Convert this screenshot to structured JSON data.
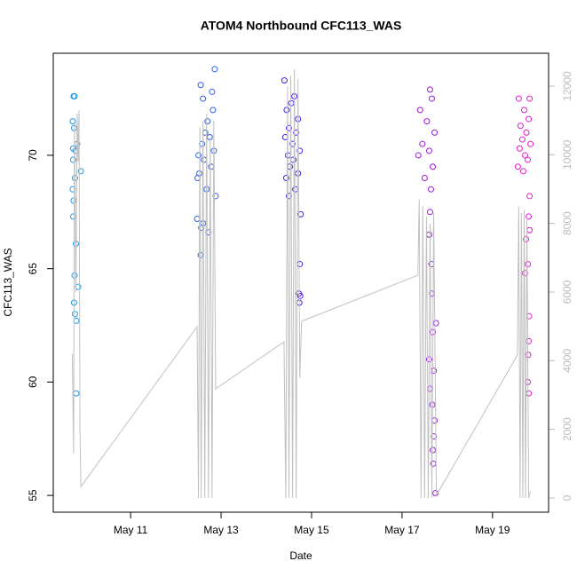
{
  "chart_data": {
    "type": "scatter",
    "title": "ATOM4 Northbound CFC113_WAS",
    "xlabel": "Date",
    "ylabel": "CFC113_WAS",
    "xlim": [
      9.29,
      20.24
    ],
    "xticks": [
      {
        "value": 11,
        "label": "May 11"
      },
      {
        "value": 13,
        "label": "May 13"
      },
      {
        "value": 15,
        "label": "May 15"
      },
      {
        "value": 17,
        "label": "May 17"
      },
      {
        "value": 19,
        "label": "May 19"
      }
    ],
    "ylim": [
      54.26,
      74.5
    ],
    "yticks": [
      55,
      60,
      65,
      70
    ],
    "y2lim": [
      -414,
      12957
    ],
    "y2ticks": [
      0,
      2000,
      4000,
      6000,
      8000,
      10000,
      12000
    ],
    "y2_color": "#bbbbbb",
    "series": [
      {
        "color": "#1e9be0",
        "x": [
          9.74,
          9.76,
          9.72,
          9.75,
          9.82,
          9.73,
          9.78,
          9.73,
          9.9,
          9.77,
          9.72,
          9.74,
          9.73,
          9.79,
          9.76,
          9.84,
          9.75,
          9.77,
          9.8,
          9.8
        ],
        "values": [
          72.6,
          72.6,
          71.5,
          71.2,
          70.5,
          70.3,
          70.2,
          69.8,
          69.3,
          69.0,
          68.5,
          68.0,
          67.3,
          66.1,
          64.7,
          64.2,
          63.5,
          63.0,
          62.7,
          59.5
        ]
      },
      {
        "color": "#2b5ff0",
        "x": [
          12.86,
          12.55,
          12.8,
          12.6,
          12.82,
          12.7,
          12.65,
          12.75,
          12.58,
          12.84,
          12.5,
          12.62,
          12.78,
          12.52,
          12.48,
          12.68,
          12.88,
          12.47,
          12.6,
          12.56,
          12.72,
          12.55
        ],
        "values": [
          73.8,
          73.1,
          72.8,
          72.5,
          72.0,
          71.5,
          71.0,
          70.8,
          70.5,
          70.2,
          70.0,
          69.8,
          69.5,
          69.2,
          69.0,
          68.5,
          68.2,
          67.2,
          67.0,
          66.8,
          66.6,
          65.6
        ]
      },
      {
        "color": "#4b1be8",
        "x": [
          14.4,
          14.62,
          14.55,
          14.45,
          14.7,
          14.5,
          14.66,
          14.42,
          14.58,
          14.74,
          14.48,
          14.6,
          14.52,
          14.7,
          14.44,
          14.64,
          14.5,
          14.76,
          14.74,
          14.72,
          14.75,
          14.73
        ],
        "values": [
          73.3,
          72.6,
          72.3,
          72.0,
          71.6,
          71.2,
          71.0,
          70.8,
          70.5,
          70.2,
          70.0,
          69.8,
          69.5,
          69.2,
          69.0,
          68.5,
          68.2,
          67.4,
          65.2,
          63.9,
          63.8,
          63.5
        ]
      },
      {
        "color": "#9a1ad8",
        "x": [
          17.62,
          17.66,
          17.4,
          17.55,
          17.72,
          17.45,
          17.6,
          17.36,
          17.68,
          17.5,
          17.64,
          17.62,
          17.6,
          17.65,
          17.66,
          17.75,
          17.68,
          17.6,
          17.7,
          17.62,
          17.67,
          17.72,
          17.7,
          17.68,
          17.69,
          17.74
        ],
        "values": [
          72.9,
          72.5,
          72.0,
          71.5,
          71.0,
          70.5,
          70.2,
          70.0,
          69.5,
          69.0,
          68.5,
          67.5,
          66.5,
          65.2,
          63.9,
          62.6,
          62.2,
          61.0,
          60.5,
          59.7,
          59.0,
          58.3,
          57.6,
          57.0,
          56.4,
          55.1
        ]
      },
      {
        "color": "#e51ad0",
        "x": [
          19.58,
          19.82,
          19.7,
          19.8,
          19.62,
          19.75,
          19.66,
          19.84,
          19.6,
          19.72,
          19.78,
          19.56,
          19.68,
          19.82,
          19.8,
          19.82,
          19.74,
          19.78,
          19.72,
          19.81,
          19.8,
          19.79,
          19.78,
          19.8
        ],
        "values": [
          72.5,
          72.5,
          72.0,
          71.6,
          71.3,
          71.0,
          70.7,
          70.5,
          70.3,
          70.0,
          69.8,
          69.5,
          69.3,
          68.2,
          67.3,
          66.7,
          66.3,
          65.2,
          64.8,
          62.9,
          61.8,
          61.2,
          60.0,
          59.5
        ]
      },
      {
        "color": "#c0c0c0",
        "style": "line",
        "axis": "y2",
        "x": [
          9.71,
          9.74,
          9.76,
          9.79,
          9.82,
          9.84,
          9.86,
          9.88,
          9.9,
          12.47,
          12.5,
          12.53,
          12.56,
          12.6,
          12.64,
          12.68,
          12.72,
          12.76,
          12.8,
          12.84,
          12.88,
          14.39,
          14.43,
          14.47,
          14.5,
          14.54,
          14.58,
          14.62,
          14.66,
          14.7,
          14.74,
          14.78,
          17.35,
          17.38,
          17.42,
          17.46,
          17.5,
          17.54,
          17.58,
          17.62,
          17.66,
          17.7,
          17.76,
          19.55,
          19.58,
          19.61,
          19.64,
          19.67,
          19.7,
          19.73,
          19.76,
          19.8,
          19.84
        ],
        "values": [
          4200,
          1300,
          10900,
          6000,
          11200,
          9800,
          11300,
          2000,
          330,
          4990,
          0,
          10800,
          0,
          11000,
          0,
          11200,
          0,
          10500,
          0,
          11000,
          3180,
          4550,
          0,
          12000,
          0,
          12300,
          0,
          12490,
          0,
          12200,
          3500,
          5150,
          6490,
          8700,
          0,
          8500,
          0,
          8200,
          0,
          8000,
          0,
          8300,
          80,
          4160,
          8500,
          0,
          8300,
          0,
          8400,
          0,
          8200,
          0,
          200
        ]
      }
    ]
  }
}
